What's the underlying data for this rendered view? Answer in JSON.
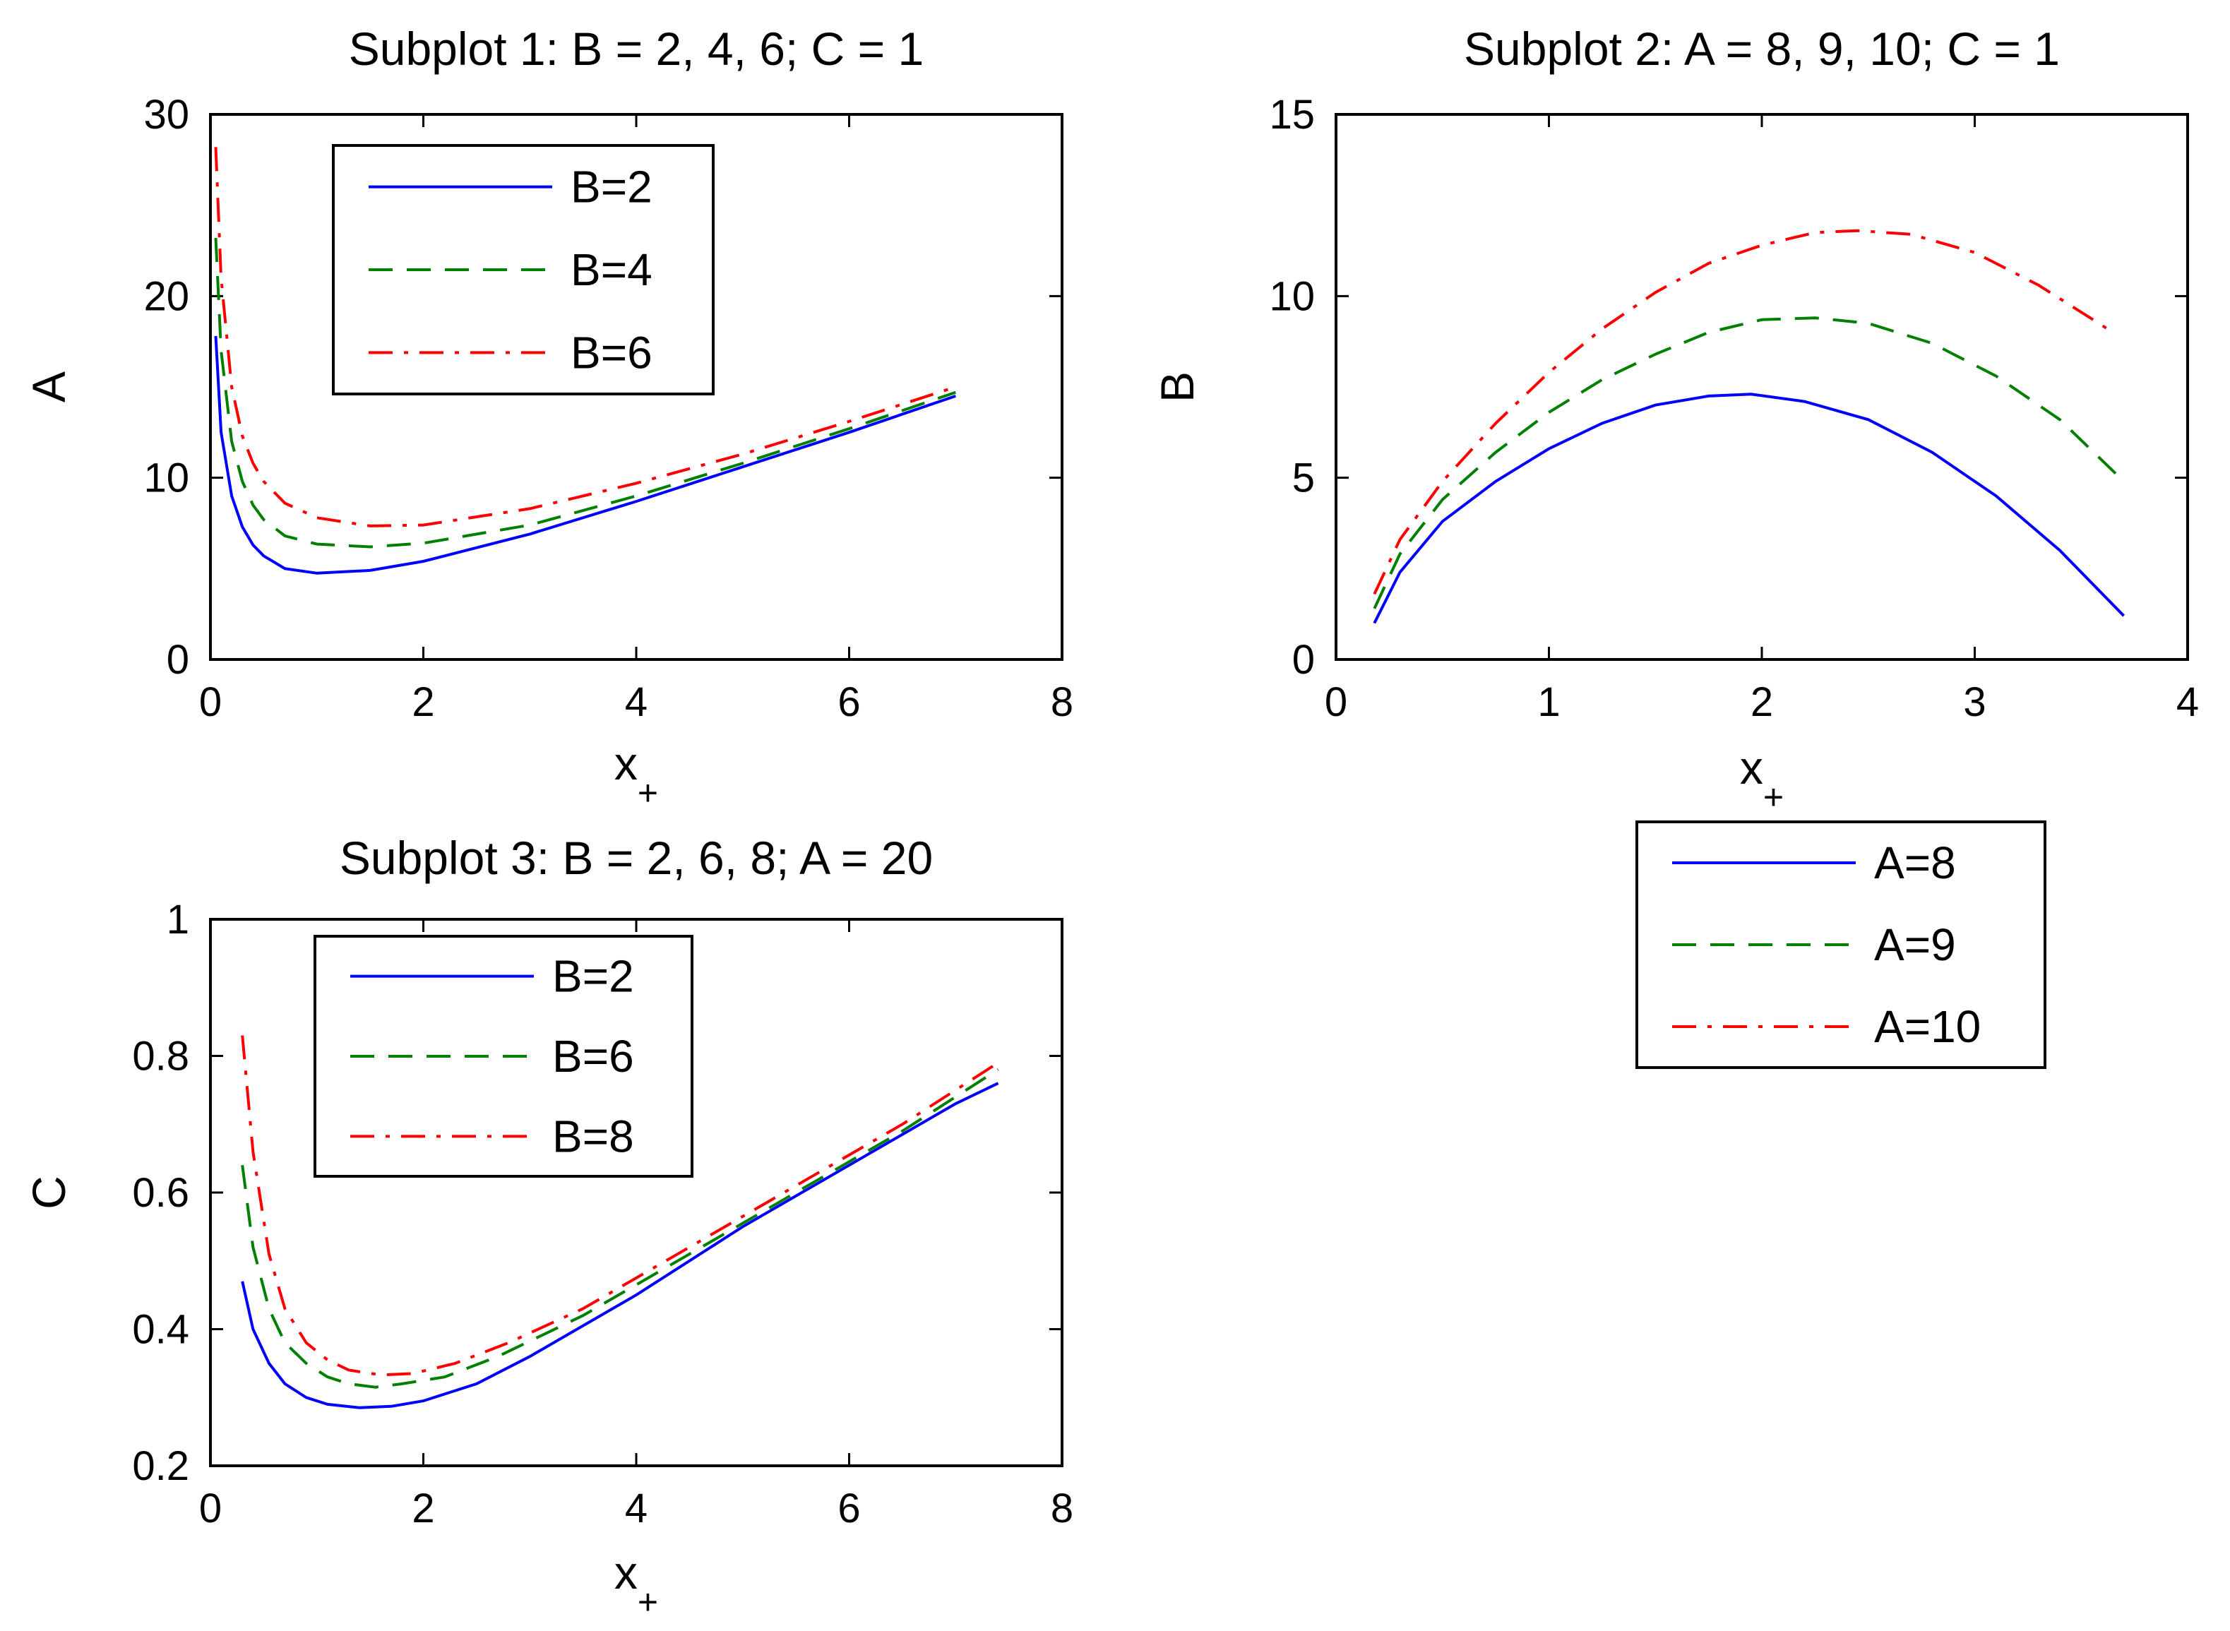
{
  "chart_data": [
    {
      "type": "line",
      "title": "Subplot 1: B = 2, 4, 6; C = 1",
      "xlabel": "x",
      "xlabel_sub": "+",
      "ylabel": "A",
      "xlim": [
        0,
        8
      ],
      "ylim": [
        0,
        30
      ],
      "xticks": [
        0,
        2,
        4,
        6,
        8
      ],
      "yticks": [
        0,
        10,
        20,
        30
      ],
      "xtick_labels": [
        "0",
        "2",
        "4",
        "6",
        "8"
      ],
      "ytick_labels": [
        "0",
        "10",
        "20",
        "30"
      ],
      "legend_position": "top-left",
      "series": [
        {
          "name": "B=2",
          "color": "#0000ff",
          "style": "solid",
          "x": [
            0.05,
            0.1,
            0.2,
            0.3,
            0.4,
            0.5,
            0.7,
            1.0,
            1.5,
            2.0,
            3.0,
            4.0,
            5.0,
            6.0,
            7.0
          ],
          "y": [
            17.8,
            12.5,
            9.0,
            7.3,
            6.3,
            5.7,
            5.0,
            4.75,
            4.9,
            5.4,
            6.9,
            8.7,
            10.6,
            12.5,
            14.5
          ]
        },
        {
          "name": "B=4",
          "color": "#008000",
          "style": "dashed",
          "x": [
            0.05,
            0.1,
            0.2,
            0.3,
            0.4,
            0.5,
            0.7,
            1.0,
            1.5,
            2.0,
            3.0,
            4.0,
            5.0,
            6.0,
            7.0
          ],
          "y": [
            23.2,
            17.0,
            12.0,
            9.8,
            8.5,
            7.7,
            6.8,
            6.35,
            6.2,
            6.4,
            7.4,
            9.0,
            10.8,
            12.7,
            14.7
          ]
        },
        {
          "name": "B=6",
          "color": "#ff0000",
          "style": "dashdot",
          "x": [
            0.05,
            0.1,
            0.2,
            0.3,
            0.4,
            0.5,
            0.7,
            1.0,
            1.5,
            2.0,
            3.0,
            4.0,
            5.0,
            6.0,
            7.0
          ],
          "y": [
            28.2,
            21.0,
            15.0,
            12.3,
            10.8,
            9.8,
            8.6,
            7.8,
            7.35,
            7.4,
            8.3,
            9.7,
            11.3,
            13.1,
            15.0
          ]
        }
      ]
    },
    {
      "type": "line",
      "title": "Subplot 2: A = 8, 9, 10; C = 1",
      "xlabel": "x",
      "xlabel_sub": "+",
      "ylabel": "B",
      "xlim": [
        0,
        4
      ],
      "ylim": [
        0,
        15
      ],
      "xticks": [
        0,
        1,
        2,
        3,
        4
      ],
      "yticks": [
        0,
        5,
        10,
        15
      ],
      "xtick_labels": [
        "0",
        "1",
        "2",
        "3",
        "4"
      ],
      "ytick_labels": [
        "0",
        "5",
        "10",
        "15"
      ],
      "legend_position": "outside-bottom",
      "series": [
        {
          "name": "A=8",
          "color": "#0000ff",
          "style": "solid",
          "x": [
            0.18,
            0.3,
            0.5,
            0.75,
            1.0,
            1.25,
            1.5,
            1.75,
            1.95,
            2.2,
            2.5,
            2.8,
            3.1,
            3.4,
            3.7
          ],
          "y": [
            1.0,
            2.4,
            3.8,
            4.9,
            5.8,
            6.5,
            7.0,
            7.25,
            7.3,
            7.1,
            6.6,
            5.7,
            4.5,
            3.0,
            1.2
          ]
        },
        {
          "name": "A=9",
          "color": "#008000",
          "style": "dashed",
          "x": [
            0.18,
            0.3,
            0.5,
            0.75,
            1.0,
            1.25,
            1.5,
            1.75,
            2.0,
            2.25,
            2.5,
            2.8,
            3.1,
            3.4,
            3.7
          ],
          "y": [
            1.4,
            2.9,
            4.4,
            5.7,
            6.8,
            7.7,
            8.4,
            9.0,
            9.35,
            9.4,
            9.25,
            8.7,
            7.8,
            6.6,
            4.9
          ]
        },
        {
          "name": "A=10",
          "color": "#ff0000",
          "style": "dashdot",
          "x": [
            0.18,
            0.3,
            0.5,
            0.75,
            1.0,
            1.25,
            1.5,
            1.75,
            2.0,
            2.25,
            2.45,
            2.7,
            3.0,
            3.3,
            3.65
          ],
          "y": [
            1.8,
            3.3,
            4.9,
            6.5,
            7.9,
            9.1,
            10.1,
            10.9,
            11.4,
            11.75,
            11.8,
            11.7,
            11.2,
            10.3,
            9.0
          ]
        }
      ]
    },
    {
      "type": "line",
      "title": "Subplot 3: B = 2, 6, 8; A = 20",
      "xlabel": "x",
      "xlabel_sub": "+",
      "ylabel": "C",
      "xlim": [
        0,
        8
      ],
      "ylim": [
        0.2,
        1
      ],
      "xticks": [
        0,
        2,
        4,
        6,
        8
      ],
      "yticks": [
        0.2,
        0.4,
        0.6,
        0.8,
        1
      ],
      "xtick_labels": [
        "0",
        "2",
        "4",
        "6",
        "8"
      ],
      "ytick_labels": [
        "0.2",
        "0.4",
        "0.6",
        "0.8",
        "1"
      ],
      "legend_position": "top-left",
      "series": [
        {
          "name": "B=2",
          "color": "#0000ff",
          "style": "solid",
          "x": [
            0.3,
            0.4,
            0.55,
            0.7,
            0.9,
            1.1,
            1.4,
            1.7,
            2.0,
            2.5,
            3.0,
            4.0,
            5.0,
            6.0,
            7.0,
            7.4
          ],
          "y": [
            0.47,
            0.4,
            0.35,
            0.32,
            0.3,
            0.29,
            0.285,
            0.287,
            0.295,
            0.32,
            0.36,
            0.45,
            0.55,
            0.64,
            0.73,
            0.76
          ]
        },
        {
          "name": "B=6",
          "color": "#008000",
          "style": "dashed",
          "x": [
            0.3,
            0.4,
            0.55,
            0.7,
            0.9,
            1.1,
            1.3,
            1.55,
            1.8,
            2.2,
            2.7,
            3.5,
            4.5,
            5.5,
            6.5,
            7.4
          ],
          "y": [
            0.64,
            0.52,
            0.43,
            0.38,
            0.35,
            0.33,
            0.32,
            0.315,
            0.32,
            0.33,
            0.36,
            0.42,
            0.51,
            0.6,
            0.69,
            0.78
          ]
        },
        {
          "name": "B=8",
          "color": "#ff0000",
          "style": "dashdot",
          "x": [
            0.3,
            0.4,
            0.55,
            0.7,
            0.9,
            1.1,
            1.3,
            1.6,
            1.9,
            2.3,
            2.8,
            3.5,
            4.5,
            5.5,
            6.5,
            7.4
          ],
          "y": [
            0.83,
            0.66,
            0.51,
            0.43,
            0.38,
            0.355,
            0.34,
            0.333,
            0.335,
            0.35,
            0.38,
            0.43,
            0.52,
            0.61,
            0.7,
            0.79
          ]
        }
      ]
    }
  ]
}
